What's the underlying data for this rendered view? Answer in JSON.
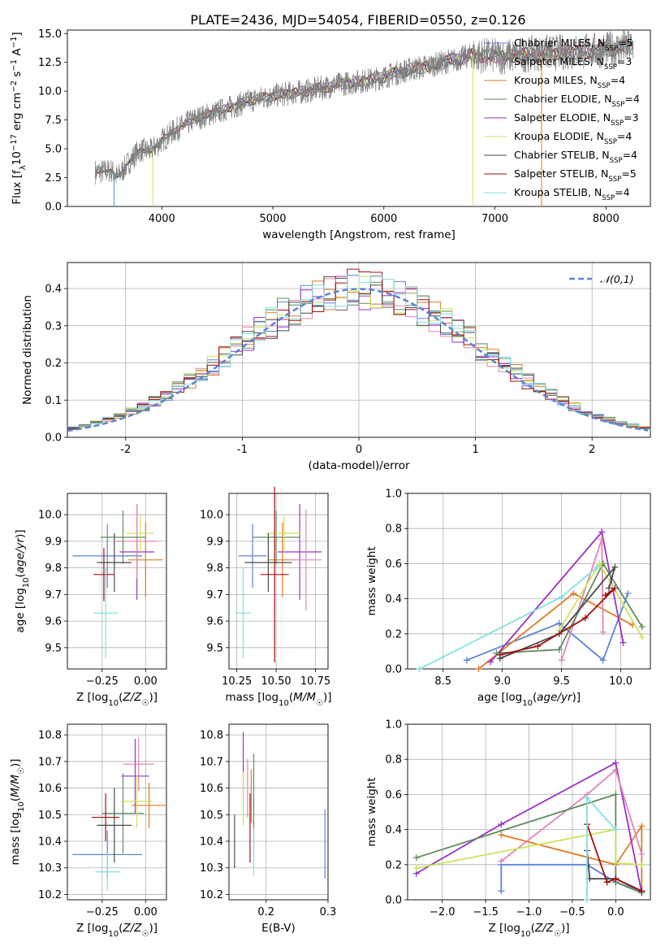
{
  "figure_title": "PLATE=2436, MJD=54054, FIBERID=0550, z=0.126",
  "colors": {
    "cornflower": "#5b84d6",
    "orange": "#e07b26",
    "purple": "#9b30c8",
    "pink": "#e383b8",
    "olive": "#5e8c5e",
    "yellow": "#cde35a",
    "darkgray": "#4a4a4a",
    "darkred": "#a01010",
    "cyan": "#7fe0e5",
    "grid": "#b0b0b0",
    "data": "#808080"
  },
  "chart_data": [
    {
      "id": "spectrum",
      "type": "line",
      "title": "PLATE=2436, MJD=54054, FIBERID=0550, z=0.126",
      "xlabel": "wavelength [Angstrom, rest frame]",
      "ylabel": "Flux [f_λ 10^-17 erg cm^-2 s^-1 A^-1]",
      "xlim": [
        3150,
        8400
      ],
      "ylim": [
        0,
        15.3
      ],
      "xticks": [
        4000,
        5000,
        6000,
        7000,
        8000
      ],
      "yticks": [
        0.0,
        2.5,
        5.0,
        7.5,
        10.0,
        12.5,
        15.0
      ],
      "ytick_labels": [
        "0.0",
        "2.5",
        "5.0",
        "7.5",
        "10.0",
        "12.5",
        "15.0"
      ],
      "grid": false,
      "legend_position": "upper-right",
      "spectrum_envelope": {
        "wavelength": [
          3400,
          3550,
          3600,
          3700,
          3800,
          3900,
          4000,
          4100,
          4300,
          4500,
          4800,
          5000,
          5300,
          5600,
          5900,
          6200,
          6500,
          6800,
          7100,
          7400,
          7700,
          8000,
          8250
        ],
        "flux": [
          3.0,
          3.1,
          2.5,
          3.8,
          4.9,
          4.8,
          5.7,
          6.5,
          7.6,
          8.2,
          9.2,
          9.6,
          10.0,
          10.6,
          11.0,
          11.8,
          12.4,
          13.1,
          13.0,
          13.3,
          13.4,
          13.6,
          13.9
        ]
      },
      "series": [
        {
          "name": "Chabrier MILES, N_SSP=5",
          "color_key": "cornflower"
        },
        {
          "name": "Salpeter MILES, N_SSP=3",
          "color_key": "pink"
        },
        {
          "name": "Kroupa MILES, N_SSP=4",
          "color_key": "orange"
        },
        {
          "name": "Chabrier ELODIE, N_SSP=4",
          "color_key": "olive"
        },
        {
          "name": "Salpeter ELODIE, N_SSP=3",
          "color_key": "purple"
        },
        {
          "name": "Kroupa ELODIE, N_SSP=4",
          "color_key": "yellow"
        },
        {
          "name": "Chabrier STELIB, N_SSP=4",
          "color_key": "darkgray"
        },
        {
          "name": "Salpeter STELIB, N_SSP=5",
          "color_key": "darkred"
        },
        {
          "name": "Kroupa STELIB, N_SSP=4",
          "color_key": "cyan"
        }
      ],
      "legend_labels": [
        [
          "Chabrier MILES, N",
          "SSP",
          "=5"
        ],
        [
          "Salpeter MILES, N",
          "SSP",
          "=3"
        ],
        [
          "Kroupa MILES, N",
          "SSP",
          "=4"
        ],
        [
          "Chabrier ELODIE, N",
          "SSP",
          "=4"
        ],
        [
          "Salpeter ELODIE, N",
          "SSP",
          "=3"
        ],
        [
          "Kroupa ELODIE, N",
          "SSP",
          "=4"
        ],
        [
          "Chabrier STELIB, N",
          "SSP",
          "=4"
        ],
        [
          "Salpeter STELIB, N",
          "SSP",
          "=5"
        ],
        [
          "Kroupa STELIB, N",
          "SSP",
          "=4"
        ]
      ]
    },
    {
      "id": "residuals",
      "type": "line",
      "xlabel": "(data-model)/error",
      "ylabel": "Normed distribution",
      "xlim": [
        -2.5,
        2.5
      ],
      "ylim": [
        0,
        0.47
      ],
      "xticks": [
        -2,
        -1,
        0,
        1,
        2
      ],
      "yticks": [
        0.0,
        0.1,
        0.2,
        0.3,
        0.4
      ],
      "ytick_labels": [
        "0.0",
        "0.1",
        "0.2",
        "0.3",
        "0.4"
      ],
      "grid": true,
      "legend_position": "upper-right",
      "legend_label": "𝒩(0,1)",
      "normal_curve": {
        "mean": 0,
        "sigma": 1,
        "color_key": "cornflower",
        "dash": true
      },
      "histogram_bin_width": 0.1,
      "histogram_range": [
        -2.5,
        2.5
      ]
    },
    {
      "id": "age_vs_Z",
      "type": "scatter",
      "xlabel": "Z [log10(Z/Z☉)]",
      "ylabel": "age [log10(age/yr)]",
      "xlim": [
        -0.45,
        0.12
      ],
      "ylim": [
        9.42,
        10.08
      ],
      "xticks": [
        -0.25,
        0.0
      ],
      "xtick_labels": [
        "−0.25",
        "0.00"
      ],
      "yticks": [
        9.5,
        9.6,
        9.7,
        9.8,
        9.9,
        10.0
      ],
      "ytick_labels": [
        "9.5",
        "9.6",
        "9.7",
        "9.8",
        "9.9",
        "10.0"
      ],
      "grid": true,
      "points": [
        {
          "x": -0.22,
          "xerr": 0.2,
          "y": 9.845,
          "yerr": 0.12,
          "color_key": "cornflower"
        },
        {
          "x": 0.0,
          "xerr": 0.1,
          "y": 9.83,
          "yerr": 0.14,
          "color_key": "orange"
        },
        {
          "x": -0.05,
          "xerr": 0.1,
          "y": 9.86,
          "yerr": 0.18,
          "color_key": "purple"
        },
        {
          "x": -0.05,
          "xerr": 0.12,
          "y": 9.9,
          "yerr": 0.14,
          "color_key": "pink"
        },
        {
          "x": -0.13,
          "xerr": 0.13,
          "y": 9.915,
          "yerr": 0.1,
          "color_key": "olive"
        },
        {
          "x": -0.03,
          "xerr": 0.08,
          "y": 9.93,
          "yerr": 0.07,
          "color_key": "yellow"
        },
        {
          "x": -0.18,
          "xerr": 0.1,
          "y": 9.82,
          "yerr": 0.11,
          "color_key": "darkgray"
        },
        {
          "x": -0.24,
          "xerr": 0.06,
          "y": 9.775,
          "yerr": 0.1,
          "color_key": "darkred"
        },
        {
          "x": -0.23,
          "xerr": 0.07,
          "y": 9.63,
          "yerr": 0.17,
          "color_key": "cyan"
        }
      ]
    },
    {
      "id": "age_vs_mass",
      "type": "scatter",
      "xlabel": "mass [log10(M/M☉)]",
      "ylabel": "",
      "xlim": [
        10.2,
        10.83
      ],
      "ylim": [
        9.42,
        10.08
      ],
      "xticks": [
        10.25,
        10.5,
        10.75
      ],
      "xtick_labels": [
        "10.25",
        "10.50",
        "10.75"
      ],
      "yticks": [
        9.5,
        9.6,
        9.7,
        9.8,
        9.9,
        10.0
      ],
      "ytick_labels": [
        "9.5",
        "9.6",
        "9.7",
        "9.8",
        "9.9",
        "10.0"
      ],
      "grid": true,
      "points": [
        {
          "x": 10.35,
          "xerr": 0.09,
          "y": 9.845,
          "yerr": 0.12,
          "color_key": "cornflower"
        },
        {
          "x": 10.54,
          "xerr": 0.09,
          "y": 9.83,
          "yerr": 0.14,
          "color_key": "orange"
        },
        {
          "x": 10.65,
          "xerr": 0.14,
          "y": 9.86,
          "yerr": 0.18,
          "color_key": "purple"
        },
        {
          "x": 10.69,
          "xerr": 0.1,
          "y": 9.83,
          "yerr": 0.19,
          "color_key": "pink"
        },
        {
          "x": 10.5,
          "xerr": 0.15,
          "y": 9.915,
          "yerr": 0.1,
          "color_key": "olive"
        },
        {
          "x": 10.55,
          "xerr": 0.11,
          "y": 9.93,
          "yerr": 0.07,
          "color_key": "yellow"
        },
        {
          "x": 10.45,
          "xerr": 0.15,
          "y": 9.82,
          "yerr": 0.11,
          "color_key": "darkgray"
        },
        {
          "x": 10.49,
          "xerr": 0.09,
          "y": 9.775,
          "yerr": 0.33,
          "color_key": "darkred"
        },
        {
          "x": 10.29,
          "xerr": 0.05,
          "y": 9.63,
          "yerr": 0.17,
          "color_key": "cyan"
        }
      ]
    },
    {
      "id": "weight_vs_age",
      "type": "line",
      "xlabel": "age [log10(age/yr)]",
      "ylabel": "mass weight",
      "xlim": [
        8.2,
        10.25
      ],
      "ylim": [
        0.0,
        1.0
      ],
      "xticks": [
        8.5,
        9.0,
        9.5,
        10.0
      ],
      "xtick_labels": [
        "8.5",
        "9.0",
        "9.5",
        "10.0"
      ],
      "yticks": [
        0.0,
        0.2,
        0.4,
        0.6,
        0.8,
        1.0
      ],
      "ytick_labels": [
        "0.0",
        "0.2",
        "0.4",
        "0.6",
        "0.8",
        "1.0"
      ],
      "grid": true,
      "series": [
        {
          "color_key": "cornflower",
          "points": [
            [
              8.7,
              0.05
            ],
            [
              9.48,
              0.26
            ],
            [
              9.85,
              0.05
            ],
            [
              10.06,
              0.43
            ]
          ]
        },
        {
          "color_key": "orange",
          "points": [
            [
              8.8,
              0.0
            ],
            [
              9.6,
              0.43
            ],
            [
              10.1,
              0.25
            ]
          ]
        },
        {
          "color_key": "purple",
          "points": [
            [
              8.9,
              0.04
            ],
            [
              9.84,
              0.78
            ],
            [
              10.02,
              0.15
            ]
          ]
        },
        {
          "color_key": "pink",
          "points": [
            [
              9.5,
              0.05
            ],
            [
              9.84,
              0.74
            ],
            [
              9.85,
              0.21
            ]
          ]
        },
        {
          "color_key": "olive",
          "points": [
            [
              8.95,
              0.09
            ],
            [
              9.48,
              0.11
            ],
            [
              9.85,
              0.6
            ],
            [
              10.18,
              0.24
            ]
          ]
        },
        {
          "color_key": "yellow",
          "points": [
            [
              9.48,
              0.22
            ],
            [
              9.82,
              0.6
            ],
            [
              10.18,
              0.18
            ]
          ]
        },
        {
          "color_key": "darkgray",
          "points": [
            [
              8.98,
              0.06
            ],
            [
              9.48,
              0.2
            ],
            [
              9.95,
              0.58
            ],
            [
              9.9,
              0.46
            ]
          ]
        },
        {
          "color_key": "darkred",
          "points": [
            [
              8.98,
              0.08
            ],
            [
              9.3,
              0.13
            ],
            [
              9.7,
              0.29
            ],
            [
              9.95,
              0.46
            ],
            [
              9.87,
              0.42
            ]
          ]
        },
        {
          "color_key": "cyan",
          "points": [
            [
              8.3,
              0.0
            ],
            [
              9.5,
              0.41
            ],
            [
              9.8,
              0.58
            ]
          ]
        }
      ]
    },
    {
      "id": "mass_vs_Z",
      "type": "scatter",
      "xlabel": "Z [log10(Z/Z☉)]",
      "ylabel": "mass [log10(M/M☉)]",
      "xlim": [
        -0.45,
        0.12
      ],
      "ylim": [
        10.18,
        10.84
      ],
      "xticks": [
        -0.25,
        0.0
      ],
      "xtick_labels": [
        "−0.25",
        "0.00"
      ],
      "yticks": [
        10.2,
        10.3,
        10.4,
        10.5,
        10.6,
        10.7,
        10.8
      ],
      "ytick_labels": [
        "10.2",
        "10.3",
        "10.4",
        "10.5",
        "10.6",
        "10.7",
        "10.8"
      ],
      "grid": true,
      "points": [
        {
          "x": -0.22,
          "xerr": 0.2,
          "y": 10.35,
          "yerr": 0.09,
          "color_key": "cornflower"
        },
        {
          "x": 0.02,
          "xerr": 0.1,
          "y": 10.535,
          "yerr": 0.085,
          "color_key": "orange"
        },
        {
          "x": -0.06,
          "xerr": 0.08,
          "y": 10.645,
          "yerr": 0.14,
          "color_key": "purple"
        },
        {
          "x": -0.04,
          "xerr": 0.09,
          "y": 10.69,
          "yerr": 0.1,
          "color_key": "pink"
        },
        {
          "x": -0.13,
          "xerr": 0.12,
          "y": 10.505,
          "yerr": 0.15,
          "color_key": "olive"
        },
        {
          "x": -0.05,
          "xerr": 0.09,
          "y": 10.55,
          "yerr": 0.1,
          "color_key": "yellow"
        },
        {
          "x": -0.18,
          "xerr": 0.1,
          "y": 10.46,
          "yerr": 0.14,
          "color_key": "darkgray"
        },
        {
          "x": -0.23,
          "xerr": 0.08,
          "y": 10.49,
          "yerr": 0.09,
          "color_key": "darkred"
        },
        {
          "x": -0.22,
          "xerr": 0.07,
          "y": 10.285,
          "yerr": 0.07,
          "color_key": "cyan"
        }
      ]
    },
    {
      "id": "mass_vs_ebv",
      "type": "scatter",
      "xlabel": "E(B-V)",
      "ylabel": "",
      "xlim": [
        0.14,
        0.3
      ],
      "ylim": [
        10.18,
        10.84
      ],
      "xticks": [
        0.2,
        0.3
      ],
      "xtick_labels": [
        "0.2",
        "0.3"
      ],
      "yticks": [
        10.2,
        10.3,
        10.4,
        10.5,
        10.6,
        10.7,
        10.8
      ],
      "ytick_labels": [
        "10.2",
        "10.3",
        "10.4",
        "10.5",
        "10.6",
        "10.7",
        "10.8"
      ],
      "grid": true,
      "points": [
        {
          "x": 0.295,
          "xerr": 0,
          "y": 10.39,
          "yerr": 0.13,
          "color_key": "cornflower"
        },
        {
          "x": 0.176,
          "xerr": 0,
          "y": 10.57,
          "yerr": 0.1,
          "color_key": "orange"
        },
        {
          "x": 0.163,
          "xerr": 0,
          "y": 10.67,
          "yerr": 0.14,
          "color_key": "purple"
        },
        {
          "x": 0.17,
          "xerr": 0,
          "y": 10.6,
          "yerr": 0.11,
          "color_key": "pink"
        },
        {
          "x": 0.18,
          "xerr": 0,
          "y": 10.55,
          "yerr": 0.18,
          "color_key": "olive"
        },
        {
          "x": 0.163,
          "xerr": 0,
          "y": 10.56,
          "yerr": 0.1,
          "color_key": "yellow"
        },
        {
          "x": 0.149,
          "xerr": 0,
          "y": 10.4,
          "yerr": 0.1,
          "color_key": "darkgray"
        },
        {
          "x": 0.174,
          "xerr": 0,
          "y": 10.45,
          "yerr": 0.13,
          "color_key": "darkred"
        },
        {
          "x": 0.18,
          "xerr": 0,
          "y": 10.36,
          "yerr": 0.09,
          "color_key": "cyan"
        }
      ]
    },
    {
      "id": "weight_vs_Z",
      "type": "line",
      "xlabel": "Z [log10(Z/Z☉)]",
      "ylabel": "mass weight",
      "xlim": [
        -2.4,
        0.4
      ],
      "ylim": [
        0.0,
        1.0
      ],
      "xticks": [
        -2.0,
        -1.5,
        -1.0,
        -0.5,
        0.0
      ],
      "xtick_labels": [
        "−2.0",
        "−1.5",
        "−1.0",
        "−0.5",
        "0.0"
      ],
      "yticks": [
        0.0,
        0.2,
        0.4,
        0.6,
        0.8,
        1.0
      ],
      "ytick_labels": [
        "0.0",
        "0.2",
        "0.4",
        "0.6",
        "0.8",
        "1.0"
      ],
      "grid": true,
      "series": [
        {
          "color_key": "cornflower",
          "points": [
            [
              -1.32,
              0.05
            ],
            [
              -1.32,
              0.2
            ],
            [
              -0.33,
              0.2
            ],
            [
              0.0,
              0.1
            ],
            [
              0.3,
              0.05
            ]
          ]
        },
        {
          "color_key": "orange",
          "points": [
            [
              -1.32,
              0.37
            ],
            [
              0.0,
              0.2
            ],
            [
              0.3,
              0.42
            ],
            [
              0.3,
              0.05
            ]
          ]
        },
        {
          "color_key": "purple",
          "points": [
            [
              -2.3,
              0.15
            ],
            [
              -1.32,
              0.43
            ],
            [
              0.0,
              0.78
            ],
            [
              0.3,
              0.04
            ]
          ]
        },
        {
          "color_key": "pink",
          "points": [
            [
              -1.32,
              0.22
            ],
            [
              -0.33,
              0.6
            ],
            [
              0.0,
              0.74
            ],
            [
              0.3,
              0.26
            ]
          ]
        },
        {
          "color_key": "olive",
          "points": [
            [
              -2.3,
              0.24
            ],
            [
              0.0,
              0.6
            ],
            [
              0.0,
              0.1
            ],
            [
              0.3,
              0.04
            ]
          ]
        },
        {
          "color_key": "yellow",
          "points": [
            [
              -2.3,
              0.18
            ],
            [
              0.0,
              0.4
            ],
            [
              0.0,
              0.21
            ],
            [
              0.3,
              0.2
            ]
          ]
        },
        {
          "color_key": "darkgray",
          "points": [
            [
              -0.33,
              0.28
            ],
            [
              -0.3,
              0.12
            ],
            [
              0.0,
              0.12
            ],
            [
              0.3,
              0.05
            ]
          ]
        },
        {
          "color_key": "darkred",
          "points": [
            [
              -0.33,
              0.43
            ],
            [
              -0.1,
              0.1
            ],
            [
              0.0,
              0.12
            ],
            [
              0.3,
              0.05
            ]
          ]
        },
        {
          "color_key": "cyan",
          "points": [
            [
              -0.33,
              0.0
            ],
            [
              -0.33,
              0.58
            ],
            [
              0.0,
              0.4
            ]
          ]
        }
      ]
    }
  ]
}
